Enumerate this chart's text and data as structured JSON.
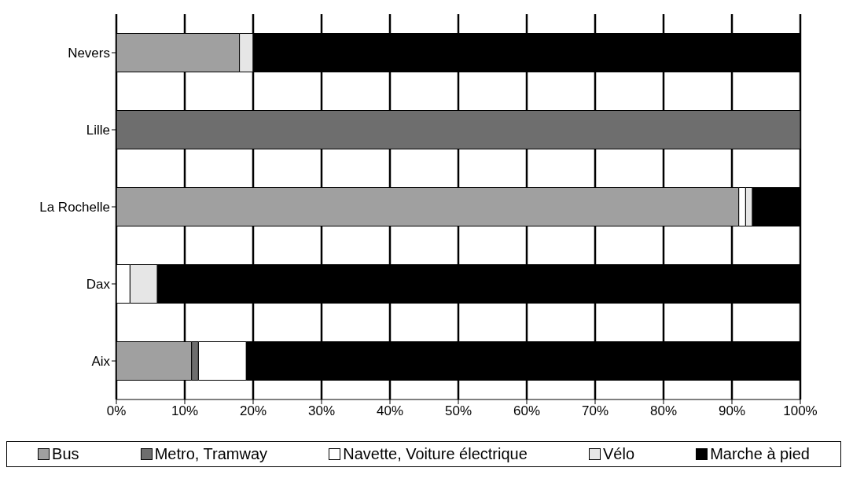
{
  "chart_data": {
    "type": "bar",
    "orientation": "horizontal",
    "stacked": true,
    "categories": [
      "Nevers",
      "Lille",
      "La Rochelle",
      "Dax",
      "Aix"
    ],
    "series": [
      {
        "name": "Bus",
        "color": "#a0a0a0",
        "values": [
          18,
          0,
          91,
          0,
          11
        ]
      },
      {
        "name": "Metro, Tramway",
        "color": "#6e6e6e",
        "values": [
          0,
          100,
          0,
          0,
          1
        ]
      },
      {
        "name": "Navette, Voiture électrique",
        "color": "#ffffff",
        "values": [
          0,
          0,
          1,
          2,
          7
        ]
      },
      {
        "name": "Vélo",
        "color": "#e6e6e6",
        "values": [
          2,
          0,
          1,
          4,
          0
        ]
      },
      {
        "name": "Marche à pied",
        "color": "#000000",
        "values": [
          80,
          0,
          7,
          94,
          81
        ]
      }
    ],
    "xlim": [
      0,
      100
    ],
    "xticks": [
      {
        "value": 0,
        "label": "0%"
      },
      {
        "value": 10,
        "label": "10%"
      },
      {
        "value": 20,
        "label": "20%"
      },
      {
        "value": 30,
        "label": "30%"
      },
      {
        "value": 40,
        "label": "40%"
      },
      {
        "value": 50,
        "label": "50%"
      },
      {
        "value": 60,
        "label": "60%"
      },
      {
        "value": 70,
        "label": "70%"
      },
      {
        "value": 80,
        "label": "80%"
      },
      {
        "value": 90,
        "label": "90%"
      },
      {
        "value": 100,
        "label": "100%"
      }
    ],
    "grid": "x",
    "legend": "bottom"
  }
}
